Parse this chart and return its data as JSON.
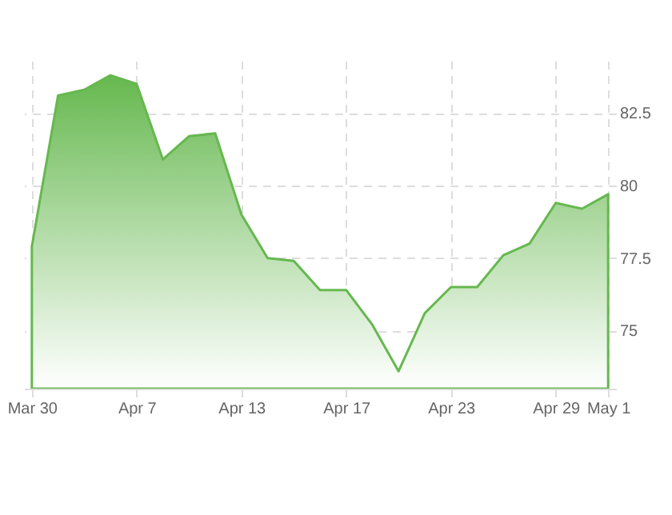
{
  "chart_data": {
    "type": "area",
    "categories": [
      "Mar 30",
      null,
      null,
      null,
      "Apr 7",
      null,
      null,
      null,
      "Apr 13",
      null,
      null,
      null,
      "Apr 17",
      null,
      null,
      null,
      "Apr 23",
      null,
      null,
      null,
      "Apr 29",
      null,
      "May 1"
    ],
    "series": [
      {
        "color": "#66b84f",
        "values": [
          77.9,
          83.1,
          83.3,
          83.8,
          83.5,
          80.9,
          81.7,
          81.8,
          79.0,
          77.5,
          77.4,
          76.4,
          76.4,
          75.2,
          73.6,
          75.6,
          76.5,
          76.5,
          77.6,
          78.0,
          79.4,
          79.2,
          79.7
        ]
      }
    ],
    "ylim": [
      73,
      84.3
    ],
    "yticks": [
      75,
      77.5,
      80,
      82.5
    ],
    "grid": true
  }
}
